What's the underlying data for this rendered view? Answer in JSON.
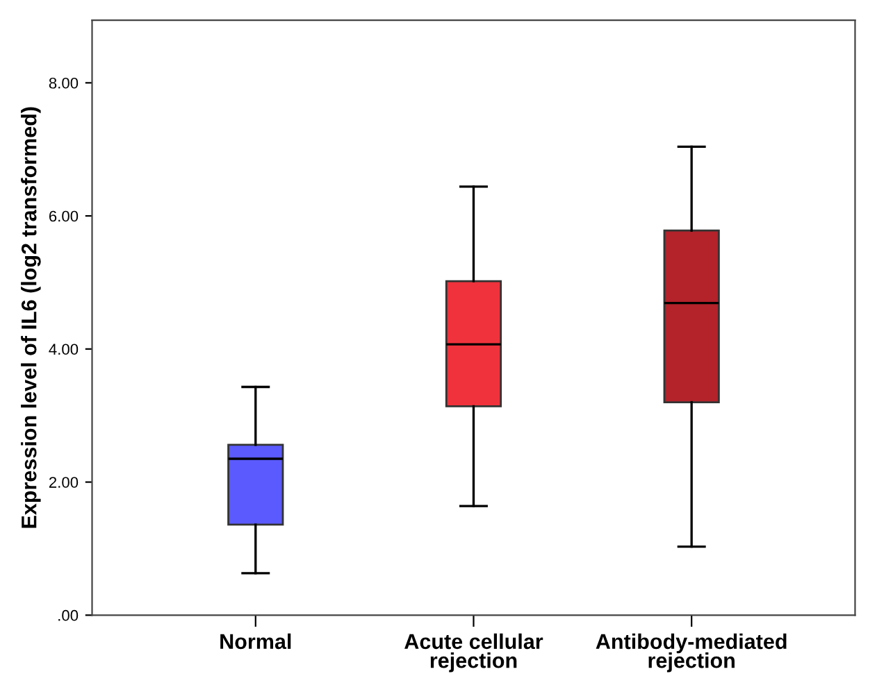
{
  "chart_data": {
    "type": "box",
    "ylabel": "Expression level of IL6 (log2 transformed)",
    "categories": [
      "Normal",
      "Acute cellular\nrejection",
      "Antibody-mediated\nrejection"
    ],
    "colors": [
      "#5a5aff",
      "#f0323c",
      "#b4222a"
    ],
    "boxes": [
      {
        "low": 0.63,
        "q1": 1.36,
        "median": 2.35,
        "q3": 2.56,
        "high": 3.43
      },
      {
        "low": 1.64,
        "q1": 3.14,
        "median": 4.07,
        "q3": 5.02,
        "high": 6.44
      },
      {
        "low": 1.03,
        "q1": 3.2,
        "median": 4.69,
        "q3": 5.78,
        "high": 7.04
      }
    ],
    "ylim": [
      0,
      8.94
    ],
    "yticks": [
      {
        "value": 0,
        "label": ".00"
      },
      {
        "value": 2,
        "label": "2.00"
      },
      {
        "value": 4,
        "label": "4.00"
      },
      {
        "value": 6,
        "label": "6.00"
      },
      {
        "value": 8,
        "label": "8.00"
      }
    ],
    "grid": false,
    "legend": false
  }
}
